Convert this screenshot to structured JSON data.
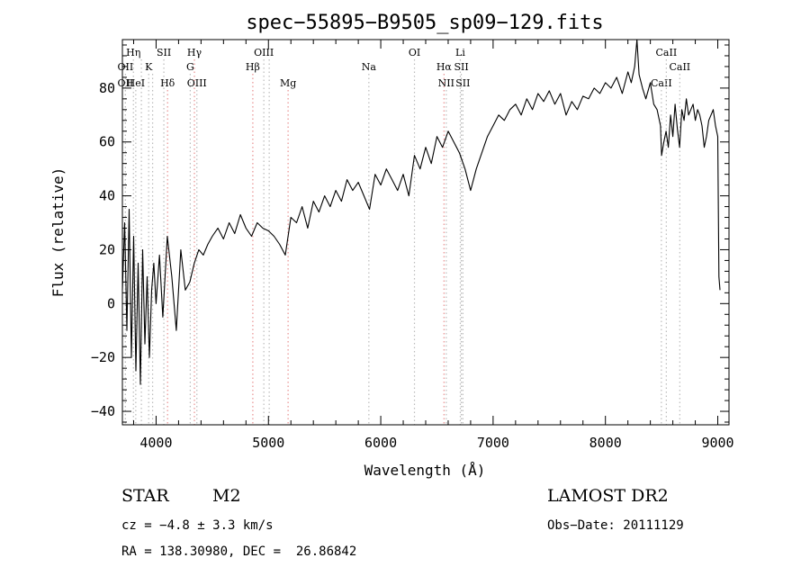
{
  "chart_data": {
    "type": "line",
    "title": "spec−55895−B9505_sp09−129.fits",
    "xlabel": "Wavelength (Å)",
    "ylabel": "Flux (relative)",
    "xlim": [
      3700,
      9100
    ],
    "ylim": [
      -45,
      98
    ],
    "xticks": [
      4000,
      5000,
      6000,
      7000,
      8000,
      9000
    ],
    "yticks": [
      -40,
      -20,
      0,
      20,
      40,
      60,
      80
    ],
    "grid": false,
    "series": [
      {
        "x": [
          3700,
          3720,
          3740,
          3760,
          3780,
          3800,
          3820,
          3840,
          3860,
          3880,
          3900,
          3920,
          3940,
          3960,
          3980,
          4000,
          4030,
          4060,
          4100,
          4140,
          4180,
          4220,
          4260,
          4300,
          4340,
          4380,
          4420,
          4460,
          4500,
          4550,
          4600,
          4650,
          4700,
          4750,
          4800,
          4850,
          4900,
          4950,
          5000,
          5050,
          5100,
          5150,
          5200,
          5250,
          5300,
          5350,
          5400,
          5450,
          5500,
          5550,
          5600,
          5650,
          5700,
          5750,
          5800,
          5850,
          5900,
          5950,
          6000,
          6050,
          6100,
          6150,
          6200,
          6250,
          6300,
          6350,
          6400,
          6450,
          6500,
          6550,
          6600,
          6650,
          6700,
          6750,
          6800,
          6850,
          6900,
          6950,
          7000,
          7050,
          7100,
          7150,
          7200,
          7250,
          7300,
          7350,
          7400,
          7450,
          7500,
          7550,
          7600,
          7650,
          7700,
          7750,
          7800,
          7850,
          7900,
          7950,
          8000,
          8050,
          8100,
          8150,
          8200,
          8230,
          8260,
          8280,
          8300,
          8330,
          8360,
          8400,
          8430,
          8460,
          8490,
          8500,
          8520,
          8540,
          8560,
          8580,
          8600,
          8620,
          8640,
          8660,
          8680,
          8700,
          8720,
          8740,
          8760,
          8780,
          8800,
          8820,
          8840,
          8860,
          8880,
          8900,
          8920,
          8940,
          8960,
          8980,
          9000,
          9010,
          9020
        ],
        "y": [
          5,
          30,
          -10,
          35,
          -20,
          25,
          -25,
          15,
          -30,
          20,
          -15,
          10,
          -20,
          5,
          15,
          0,
          18,
          -5,
          25,
          10,
          -10,
          20,
          5,
          8,
          15,
          20,
          18,
          22,
          25,
          28,
          24,
          30,
          26,
          33,
          28,
          25,
          30,
          28,
          27,
          25,
          22,
          18,
          32,
          30,
          36,
          28,
          38,
          34,
          40,
          36,
          42,
          38,
          46,
          42,
          45,
          40,
          35,
          48,
          44,
          50,
          46,
          42,
          48,
          40,
          55,
          50,
          58,
          52,
          62,
          58,
          64,
          60,
          56,
          50,
          42,
          50,
          56,
          62,
          66,
          70,
          68,
          72,
          74,
          70,
          76,
          72,
          78,
          75,
          79,
          74,
          78,
          70,
          75,
          72,
          77,
          76,
          80,
          78,
          82,
          80,
          84,
          78,
          86,
          82,
          88,
          98,
          85,
          80,
          76,
          82,
          74,
          72,
          66,
          55,
          60,
          64,
          58,
          70,
          62,
          74,
          65,
          58,
          72,
          68,
          76,
          70,
          72,
          74,
          68,
          72,
          70,
          66,
          58,
          62,
          68,
          70,
          72,
          66,
          62,
          10,
          5
        ]
      }
    ],
    "lines": [
      {
        "w": 3727,
        "label": "OII",
        "row": 1,
        "color": "#bbbbbb"
      },
      {
        "w": 3727,
        "label": "OII",
        "row": 2,
        "color": "#bbbbbb"
      },
      {
        "w": 3798,
        "label": "Hη",
        "row": 0,
        "color": "#bbbbbb"
      },
      {
        "w": 3819,
        "label": "HeI",
        "row": 2,
        "color": "#bbbbbb"
      },
      {
        "w": 3869,
        "label": "",
        "row": 0,
        "color": "#bbbbbb"
      },
      {
        "w": 3934,
        "label": "K",
        "row": 1,
        "color": "#bbbbbb"
      },
      {
        "w": 3969,
        "label": "",
        "row": 1,
        "color": "#bbbbbb"
      },
      {
        "w": 4069,
        "label": "SII",
        "row": 0,
        "color": "#bbbbbb"
      },
      {
        "w": 4102,
        "label": "Hδ",
        "row": 2,
        "color": "#e89090"
      },
      {
        "w": 4304,
        "label": "G",
        "row": 1,
        "color": "#bbbbbb"
      },
      {
        "w": 4341,
        "label": "Hγ",
        "row": 0,
        "color": "#e89090"
      },
      {
        "w": 4363,
        "label": "OIII",
        "row": 2,
        "color": "#bbbbbb"
      },
      {
        "w": 4861,
        "label": "Hβ",
        "row": 1,
        "color": "#e89090"
      },
      {
        "w": 4959,
        "label": "OIII",
        "row": 0,
        "color": "#bbbbbb"
      },
      {
        "w": 5007,
        "label": "",
        "row": 0,
        "color": "#bbbbbb"
      },
      {
        "w": 5175,
        "label": "Mg",
        "row": 2,
        "color": "#e89090"
      },
      {
        "w": 5894,
        "label": "Na",
        "row": 1,
        "color": "#bbbbbb"
      },
      {
        "w": 6300,
        "label": "OI",
        "row": 0,
        "color": "#bbbbbb"
      },
      {
        "w": 6563,
        "label": "Hα",
        "row": 1,
        "color": "#e89090"
      },
      {
        "w": 6583,
        "label": "NII",
        "row": 2,
        "color": "#bbbbbb"
      },
      {
        "w": 6708,
        "label": "Li",
        "row": 0,
        "color": "#bbbbbb"
      },
      {
        "w": 6717,
        "label": "SII",
        "row": 1,
        "color": "#bbbbbb"
      },
      {
        "w": 6731,
        "label": "SII",
        "row": 2,
        "color": "#bbbbbb"
      },
      {
        "w": 8498,
        "label": "CaII",
        "row": 2,
        "color": "#bbbbbb"
      },
      {
        "w": 8542,
        "label": "CaII",
        "row": 0,
        "color": "#bbbbbb"
      },
      {
        "w": 8662,
        "label": "CaII",
        "row": 1,
        "color": "#bbbbbb"
      }
    ]
  },
  "info": {
    "obj_type": "STAR",
    "subclass": "M2",
    "survey": "LAMOST DR2",
    "cz": "cz = −4.8 ± 3.3 km/s",
    "obs_date": "Obs−Date: 20111129",
    "coords": "RA = 138.30980, DEC =  26.86842"
  }
}
